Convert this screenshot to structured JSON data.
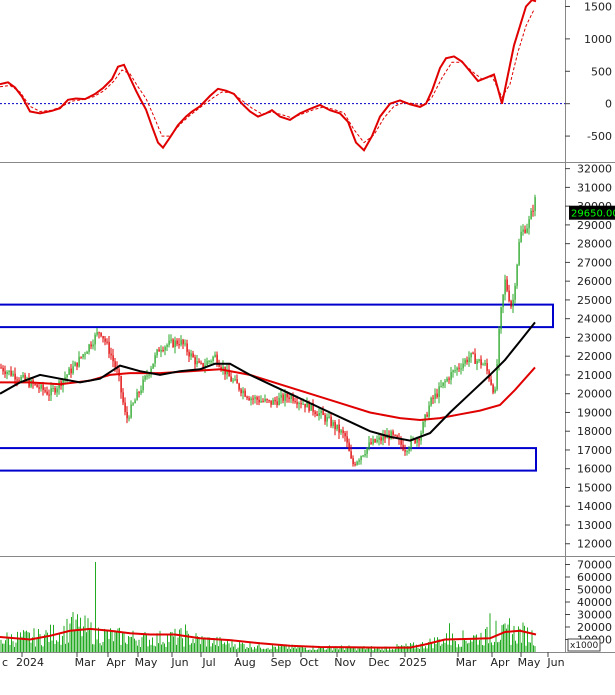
{
  "colors": {
    "macd": "#e00000",
    "ma_short": "#000000",
    "ma_long": "#e00000",
    "candle_up": "#2eaa2e",
    "candle_down": "#e00000",
    "volume_bar": "#22aa22",
    "volume_ma": "#e00000",
    "zero_line": "#0000cc",
    "zone_box": "#0000cc",
    "price_badge": "#000000",
    "price_badge_text": "#00ff00"
  },
  "chart_data": [
    {
      "type": "line",
      "panel": "oscillator",
      "yticks": [
        "1500",
        "1000",
        "500",
        "0",
        "-500"
      ],
      "ylim": [
        -900,
        1600
      ],
      "zero_line": true,
      "series": [
        {
          "style": "solid",
          "points": [
            [
              0,
              300
            ],
            [
              8,
              330
            ],
            [
              15,
              250
            ],
            [
              22,
              110
            ],
            [
              30,
              -120
            ],
            [
              40,
              -150
            ],
            [
              52,
              -110
            ],
            [
              60,
              -70
            ],
            [
              68,
              60
            ],
            [
              76,
              80
            ],
            [
              85,
              70
            ],
            [
              95,
              150
            ],
            [
              103,
              240
            ],
            [
              112,
              380
            ],
            [
              118,
              570
            ],
            [
              124,
              600
            ],
            [
              130,
              400
            ],
            [
              136,
              200
            ],
            [
              140,
              80
            ],
            [
              146,
              -90
            ],
            [
              152,
              -350
            ],
            [
              158,
              -600
            ],
            [
              163,
              -680
            ],
            [
              170,
              -520
            ],
            [
              178,
              -330
            ],
            [
              186,
              -200
            ],
            [
              192,
              -120
            ],
            [
              200,
              -40
            ],
            [
              210,
              120
            ],
            [
              218,
              230
            ],
            [
              226,
              200
            ],
            [
              234,
              150
            ],
            [
              242,
              0
            ],
            [
              250,
              -120
            ],
            [
              258,
              -200
            ],
            [
              266,
              -150
            ],
            [
              272,
              -100
            ],
            [
              280,
              -200
            ],
            [
              290,
              -250
            ],
            [
              300,
              -150
            ],
            [
              310,
              -80
            ],
            [
              320,
              -20
            ],
            [
              330,
              -100
            ],
            [
              340,
              -150
            ],
            [
              348,
              -280
            ],
            [
              356,
              -600
            ],
            [
              364,
              -720
            ],
            [
              372,
              -500
            ],
            [
              380,
              -200
            ],
            [
              390,
              0
            ],
            [
              400,
              50
            ],
            [
              410,
              -10
            ],
            [
              420,
              -50
            ],
            [
              426,
              0
            ],
            [
              432,
              200
            ],
            [
              440,
              550
            ],
            [
              446,
              700
            ],
            [
              454,
              730
            ],
            [
              462,
              650
            ],
            [
              470,
              500
            ],
            [
              478,
              350
            ],
            [
              486,
              400
            ],
            [
              494,
              450
            ],
            [
              502,
              0
            ],
            [
              508,
              450
            ],
            [
              514,
              900
            ],
            [
              520,
              1200
            ],
            [
              526,
              1500
            ],
            [
              532,
              1600
            ],
            [
              536,
              1580
            ]
          ]
        },
        {
          "style": "dashed",
          "points": [
            [
              0,
              260
            ],
            [
              10,
              280
            ],
            [
              20,
              180
            ],
            [
              30,
              -40
            ],
            [
              40,
              -120
            ],
            [
              52,
              -100
            ],
            [
              62,
              -40
            ],
            [
              72,
              40
            ],
            [
              82,
              60
            ],
            [
              94,
              110
            ],
            [
              104,
              200
            ],
            [
              114,
              350
            ],
            [
              122,
              520
            ],
            [
              130,
              460
            ],
            [
              138,
              260
            ],
            [
              146,
              80
            ],
            [
              154,
              -200
            ],
            [
              162,
              -500
            ],
            [
              170,
              -500
            ],
            [
              180,
              -320
            ],
            [
              190,
              -180
            ],
            [
              200,
              -60
            ],
            [
              212,
              80
            ],
            [
              222,
              180
            ],
            [
              232,
              170
            ],
            [
              242,
              50
            ],
            [
              252,
              -70
            ],
            [
              262,
              -160
            ],
            [
              272,
              -130
            ],
            [
              282,
              -170
            ],
            [
              292,
              -220
            ],
            [
              302,
              -160
            ],
            [
              314,
              -90
            ],
            [
              324,
              -50
            ],
            [
              334,
              -90
            ],
            [
              344,
              -140
            ],
            [
              354,
              -400
            ],
            [
              364,
              -600
            ],
            [
              374,
              -480
            ],
            [
              384,
              -220
            ],
            [
              394,
              -40
            ],
            [
              404,
              20
            ],
            [
              414,
              0
            ],
            [
              424,
              -20
            ],
            [
              432,
              100
            ],
            [
              442,
              400
            ],
            [
              452,
              640
            ],
            [
              462,
              640
            ],
            [
              472,
              500
            ],
            [
              482,
              380
            ],
            [
              492,
              420
            ],
            [
              502,
              100
            ],
            [
              510,
              300
            ],
            [
              518,
              800
            ],
            [
              526,
              1200
            ],
            [
              534,
              1450
            ]
          ]
        }
      ]
    },
    {
      "type": "candlestick",
      "panel": "price",
      "last_price_label": "29650.00",
      "yticks": [
        "32000",
        "31000",
        "30000",
        "29000",
        "28000",
        "27000",
        "26000",
        "25000",
        "24000",
        "23000",
        "22000",
        "21000",
        "20000",
        "19000",
        "18000",
        "17000",
        "16000",
        "15000",
        "14000",
        "13000",
        "12000"
      ],
      "ylim": [
        11400,
        32300
      ],
      "price_start": 21400,
      "price_path": [
        [
          0,
          21400
        ],
        [
          25,
          20700
        ],
        [
          50,
          20000
        ],
        [
          75,
          21500
        ],
        [
          100,
          23400
        ],
        [
          110,
          22200
        ],
        [
          118,
          21000
        ],
        [
          126,
          18600
        ],
        [
          140,
          20200
        ],
        [
          160,
          22500
        ],
        [
          180,
          22800
        ],
        [
          200,
          21400
        ],
        [
          215,
          22000
        ],
        [
          230,
          20800
        ],
        [
          250,
          19800
        ],
        [
          270,
          19500
        ],
        [
          290,
          19900
        ],
        [
          310,
          19300
        ],
        [
          330,
          18500
        ],
        [
          345,
          17700
        ],
        [
          352,
          16200
        ],
        [
          370,
          17300
        ],
        [
          390,
          17800
        ],
        [
          405,
          17100
        ],
        [
          420,
          17800
        ],
        [
          430,
          19500
        ],
        [
          450,
          21000
        ],
        [
          470,
          22000
        ],
        [
          485,
          21500
        ],
        [
          495,
          20000
        ],
        [
          500,
          24000
        ],
        [
          505,
          26000
        ],
        [
          512,
          24500
        ],
        [
          520,
          28500
        ],
        [
          528,
          29000
        ],
        [
          536,
          30500
        ]
      ],
      "ma_short": [
        [
          0,
          20000
        ],
        [
          20,
          20600
        ],
        [
          40,
          21000
        ],
        [
          60,
          20800
        ],
        [
          80,
          20600
        ],
        [
          100,
          20800
        ],
        [
          120,
          21500
        ],
        [
          140,
          21200
        ],
        [
          160,
          21000
        ],
        [
          180,
          21200
        ],
        [
          200,
          21300
        ],
        [
          215,
          21600
        ],
        [
          230,
          21600
        ],
        [
          250,
          21000
        ],
        [
          270,
          20500
        ],
        [
          290,
          20000
        ],
        [
          310,
          19500
        ],
        [
          330,
          19000
        ],
        [
          350,
          18500
        ],
        [
          370,
          18000
        ],
        [
          390,
          17700
        ],
        [
          410,
          17500
        ],
        [
          430,
          17900
        ],
        [
          450,
          19000
        ],
        [
          470,
          20000
        ],
        [
          490,
          21000
        ],
        [
          505,
          21800
        ],
        [
          520,
          22800
        ],
        [
          535,
          23800
        ]
      ],
      "ma_long": [
        [
          0,
          20600
        ],
        [
          30,
          20600
        ],
        [
          60,
          20500
        ],
        [
          90,
          20700
        ],
        [
          110,
          21000
        ],
        [
          130,
          21100
        ],
        [
          160,
          21100
        ],
        [
          190,
          21200
        ],
        [
          220,
          21300
        ],
        [
          250,
          21000
        ],
        [
          280,
          20500
        ],
        [
          310,
          20000
        ],
        [
          340,
          19500
        ],
        [
          370,
          19000
        ],
        [
          400,
          18700
        ],
        [
          420,
          18600
        ],
        [
          440,
          18700
        ],
        [
          460,
          18900
        ],
        [
          480,
          19100
        ],
        [
          500,
          19400
        ],
        [
          515,
          20200
        ],
        [
          535,
          21400
        ]
      ],
      "zones": [
        {
          "from": 23550,
          "to": 24750
        },
        {
          "from": 15900,
          "to": 17100
        }
      ]
    },
    {
      "type": "bar",
      "panel": "volume",
      "yticks": [
        "70000",
        "60000",
        "50000",
        "40000",
        "30000",
        "20000",
        "10000"
      ],
      "unit_label": "x1000",
      "ylim": [
        0,
        76000
      ],
      "xticks": [
        "c",
        "2024",
        "Mar",
        "Apr",
        "May",
        "Jun",
        "Jul",
        "Aug",
        "Sep",
        "Oct",
        "Nov",
        "Dec",
        "2025",
        "Mar",
        "Apr",
        "May",
        "Jun"
      ],
      "volume_profile": [
        [
          0,
          12000
        ],
        [
          40,
          14000
        ],
        [
          60,
          18000
        ],
        [
          75,
          24000
        ],
        [
          95,
          18000
        ],
        [
          110,
          15000
        ],
        [
          150,
          12000
        ],
        [
          180,
          14000
        ],
        [
          210,
          10000
        ],
        [
          240,
          7000
        ],
        [
          270,
          5000
        ],
        [
          300,
          4000
        ],
        [
          340,
          4000
        ],
        [
          380,
          3500
        ],
        [
          420,
          6000
        ],
        [
          440,
          11000
        ],
        [
          470,
          13000
        ],
        [
          500,
          16000
        ],
        [
          520,
          18000
        ],
        [
          536,
          14000
        ]
      ],
      "volume_ma": [
        [
          0,
          12000
        ],
        [
          30,
          10000
        ],
        [
          50,
          13000
        ],
        [
          70,
          17000
        ],
        [
          90,
          18500
        ],
        [
          110,
          17000
        ],
        [
          130,
          15000
        ],
        [
          150,
          14000
        ],
        [
          175,
          14000
        ],
        [
          200,
          11000
        ],
        [
          230,
          9500
        ],
        [
          260,
          7000
        ],
        [
          290,
          5000
        ],
        [
          320,
          4000
        ],
        [
          350,
          3800
        ],
        [
          380,
          3500
        ],
        [
          410,
          3500
        ],
        [
          425,
          6000
        ],
        [
          445,
          10000
        ],
        [
          470,
          10500
        ],
        [
          490,
          11000
        ],
        [
          505,
          16000
        ],
        [
          520,
          17000
        ],
        [
          536,
          14000
        ]
      ],
      "spikes": [
        [
          96,
          72000
        ],
        [
          74,
          30000
        ],
        [
          72,
          28000
        ],
        [
          140,
          28000
        ],
        [
          186,
          22000
        ],
        [
          450,
          23000
        ],
        [
          490,
          31000
        ],
        [
          496,
          25000
        ],
        [
          510,
          27000
        ]
      ]
    }
  ]
}
